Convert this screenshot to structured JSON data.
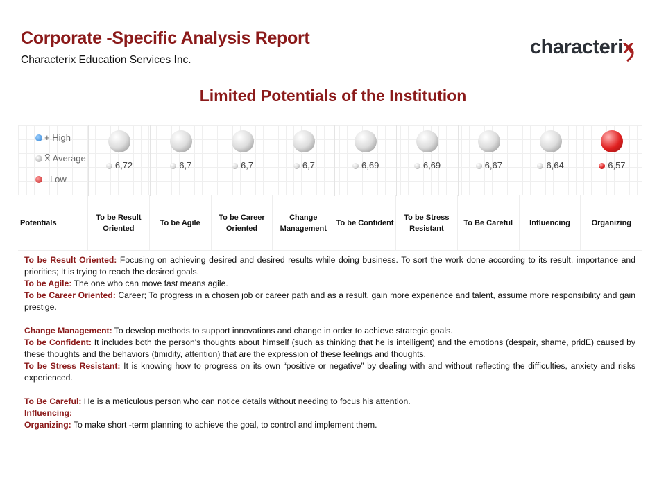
{
  "header": {
    "title": "Corporate -Specific Analysis Report",
    "subtitle": "Characterix Education Services Inc.",
    "logo": "characterix"
  },
  "section_title": "Limited Potentials of the Institution",
  "legend": [
    {
      "label": "+ High",
      "color": "#2f7fd0"
    },
    {
      "label": "X̄ Average",
      "color": "#d8d8d8"
    },
    {
      "label": "- Low",
      "color": "#d03030"
    }
  ],
  "row_header": "Potentials",
  "potentials": [
    {
      "name": "To be Result Oriented",
      "value": "6,72",
      "level": "average"
    },
    {
      "name": "To be Agile",
      "value": "6,7",
      "level": "average"
    },
    {
      "name": "To be Career Oriented",
      "value": "6,7",
      "level": "average"
    },
    {
      "name": "Change Management",
      "value": "6,7",
      "level": "average"
    },
    {
      "name": "To be Confident",
      "value": "6,69",
      "level": "average"
    },
    {
      "name": "To be Stress Resistant",
      "value": "6,69",
      "level": "average"
    },
    {
      "name": "To Be Careful",
      "value": "6,67",
      "level": "average"
    },
    {
      "name": "Influencing",
      "value": "6,64",
      "level": "average"
    },
    {
      "name": "Organizing",
      "value": "6,57",
      "level": "low"
    }
  ],
  "descriptions": [
    {
      "term": "To be Result Oriented:",
      "text": " Focusing on achieving desired and desired results while doing business. To sort the work done according to its result, importance and priorities; It is trying to reach the desired goals."
    },
    {
      "term": "To be Agile:",
      "text": " The one who can move fast means agile."
    },
    {
      "term": "To be Career Oriented:",
      "text": " Career; To progress in a chosen job or career path and as a result, gain more experience and talent, assume more responsibility and gain prestige."
    },
    {
      "term": "",
      "text": ""
    },
    {
      "term": "Change Management:",
      "text": " To develop methods to support innovations and change in order to achieve strategic goals."
    },
    {
      "term": "To be Confident:",
      "text": " It includes both the person's thoughts about himself (such as thinking that he is intelligent) and the emotions (despair, shame, pridE) caused by these thoughts and the behaviors (timidity, attention) that are the expression of these feelings and thoughts."
    },
    {
      "term": "To be Stress Resistant:",
      "text": " It is knowing how to progress on its own “positive or negative” by dealing with and without reflecting the difficulties, anxiety and risks experienced."
    },
    {
      "term": "",
      "text": ""
    },
    {
      "term": "To Be Careful:",
      "text": " He is a meticulous person who can notice details without needing to focus his attention."
    },
    {
      "term": "Influencing:",
      "text": ""
    },
    {
      "term": "Organizing:",
      "text": " To make short -term planning to achieve the goal, to control and implement them."
    }
  ]
}
